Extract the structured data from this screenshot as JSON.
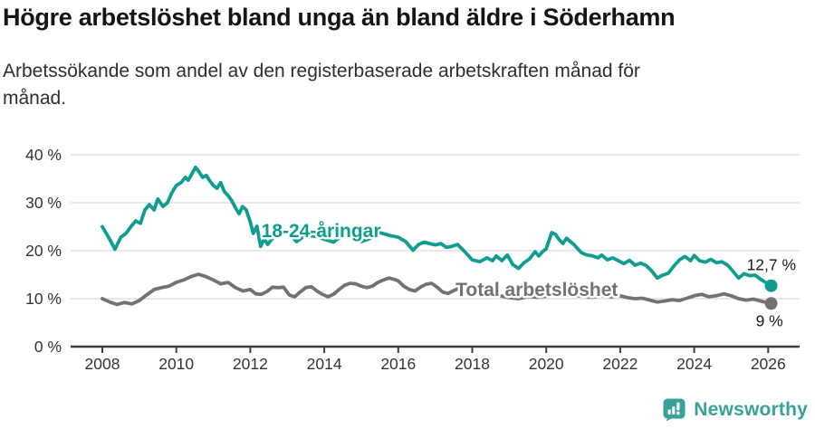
{
  "header": {
    "title": "Högre arbetslöshet bland unga än bland äldre i Söderhamn",
    "subtitle_line1": "Arbetssökande som andel av den registerbaserade arbetskraften månad för",
    "subtitle_line2": "månad."
  },
  "footer": {
    "brand": "Newsworthy",
    "logo_icon": "newsworthy-chart-bubble-icon",
    "brand_color": "#38a29a"
  },
  "chart_data": {
    "type": "line",
    "title": "Högre arbetslöshet bland unga än bland äldre i Söderhamn",
    "xlabel": "",
    "ylabel": "",
    "x_ticks": [
      2008,
      2010,
      2012,
      2014,
      2016,
      2018,
      2020,
      2022,
      2024,
      2026
    ],
    "y_ticks": [
      0,
      10,
      20,
      30,
      40
    ],
    "y_tick_suffix": " %",
    "xlim": [
      2007.1,
      2026.9
    ],
    "ylim": [
      0,
      40
    ],
    "grid": true,
    "legend_position": "inline-labels",
    "colors": {
      "grid": "#d9d9d9",
      "axis": "#3e3e3e",
      "tick_text": "#333333",
      "annotation_text": "#1a1a1a"
    },
    "series": [
      {
        "name": "Total arbetslöshet",
        "color": "#727275",
        "end_label": "9 %",
        "end_label_side": "below",
        "label_anchor": {
          "year": 2017.55,
          "value": 10.6
        },
        "points": [
          [
            2008.0,
            10.0
          ],
          [
            2008.2,
            9.3
          ],
          [
            2008.4,
            8.8
          ],
          [
            2008.6,
            9.2
          ],
          [
            2008.8,
            8.9
          ],
          [
            2009.0,
            9.6
          ],
          [
            2009.2,
            10.8
          ],
          [
            2009.4,
            11.9
          ],
          [
            2009.6,
            12.3
          ],
          [
            2009.8,
            12.6
          ],
          [
            2010.0,
            13.4
          ],
          [
            2010.2,
            13.9
          ],
          [
            2010.4,
            14.6
          ],
          [
            2010.6,
            15.1
          ],
          [
            2010.8,
            14.6
          ],
          [
            2011.0,
            13.9
          ],
          [
            2011.2,
            13.1
          ],
          [
            2011.4,
            13.4
          ],
          [
            2011.6,
            12.3
          ],
          [
            2011.8,
            11.6
          ],
          [
            2012.0,
            11.9
          ],
          [
            2012.15,
            11.0
          ],
          [
            2012.3,
            10.9
          ],
          [
            2012.45,
            11.5
          ],
          [
            2012.6,
            12.4
          ],
          [
            2012.75,
            12.3
          ],
          [
            2012.9,
            12.4
          ],
          [
            2013.05,
            10.8
          ],
          [
            2013.2,
            10.4
          ],
          [
            2013.35,
            11.4
          ],
          [
            2013.5,
            12.3
          ],
          [
            2013.65,
            12.5
          ],
          [
            2013.8,
            11.6
          ],
          [
            2013.95,
            10.9
          ],
          [
            2014.1,
            10.4
          ],
          [
            2014.25,
            10.9
          ],
          [
            2014.4,
            11.9
          ],
          [
            2014.55,
            12.8
          ],
          [
            2014.7,
            13.2
          ],
          [
            2014.85,
            13.1
          ],
          [
            2015.0,
            12.6
          ],
          [
            2015.15,
            12.3
          ],
          [
            2015.3,
            12.6
          ],
          [
            2015.45,
            13.4
          ],
          [
            2015.6,
            13.9
          ],
          [
            2015.75,
            14.3
          ],
          [
            2015.9,
            14.0
          ],
          [
            2016.0,
            13.7
          ],
          [
            2016.15,
            12.6
          ],
          [
            2016.3,
            11.9
          ],
          [
            2016.45,
            11.6
          ],
          [
            2016.6,
            12.4
          ],
          [
            2016.75,
            13.0
          ],
          [
            2016.9,
            13.2
          ],
          [
            2017.05,
            12.4
          ],
          [
            2017.2,
            11.4
          ],
          [
            2017.35,
            11.1
          ],
          [
            2017.5,
            11.7
          ],
          [
            2017.65,
            12.2
          ],
          [
            2017.8,
            11.9
          ],
          [
            2018.0,
            11.3
          ],
          [
            2018.25,
            10.7
          ],
          [
            2018.5,
            10.9
          ],
          [
            2018.75,
            10.6
          ],
          [
            2019.0,
            10.2
          ],
          [
            2019.25,
            10.0
          ],
          [
            2019.5,
            10.4
          ],
          [
            2019.75,
            10.3
          ],
          [
            2020.0,
            10.5
          ],
          [
            2020.25,
            11.2
          ],
          [
            2020.5,
            11.0
          ],
          [
            2020.75,
            10.7
          ],
          [
            2021.0,
            10.5
          ],
          [
            2021.25,
            10.3
          ],
          [
            2021.5,
            10.6
          ],
          [
            2021.75,
            10.4
          ],
          [
            2022.0,
            10.6
          ],
          [
            2022.2,
            10.2
          ],
          [
            2022.4,
            10.0
          ],
          [
            2022.6,
            10.1
          ],
          [
            2022.8,
            9.7
          ],
          [
            2023.0,
            9.3
          ],
          [
            2023.2,
            9.5
          ],
          [
            2023.4,
            9.8
          ],
          [
            2023.6,
            9.6
          ],
          [
            2023.8,
            10.1
          ],
          [
            2024.0,
            10.6
          ],
          [
            2024.2,
            10.9
          ],
          [
            2024.4,
            10.4
          ],
          [
            2024.6,
            10.6
          ],
          [
            2024.8,
            11.0
          ],
          [
            2025.0,
            10.6
          ],
          [
            2025.2,
            10.0
          ],
          [
            2025.4,
            9.7
          ],
          [
            2025.6,
            9.9
          ],
          [
            2025.8,
            9.5
          ],
          [
            2026.08,
            9.0
          ]
        ]
      },
      {
        "name": "18-24-åringar",
        "color": "#0f9d8f",
        "end_label": "12,7 %",
        "end_label_side": "above",
        "label_anchor": {
          "year": 2012.3,
          "value": 22.8
        },
        "points": [
          [
            2008.0,
            25.0
          ],
          [
            2008.17,
            22.8
          ],
          [
            2008.34,
            20.3
          ],
          [
            2008.5,
            22.8
          ],
          [
            2008.64,
            23.6
          ],
          [
            2008.78,
            25.1
          ],
          [
            2008.9,
            26.2
          ],
          [
            2009.03,
            25.7
          ],
          [
            2009.15,
            28.5
          ],
          [
            2009.27,
            29.6
          ],
          [
            2009.4,
            28.5
          ],
          [
            2009.5,
            30.8
          ],
          [
            2009.64,
            29.2
          ],
          [
            2009.76,
            30.0
          ],
          [
            2009.88,
            32.1
          ],
          [
            2010.0,
            33.6
          ],
          [
            2010.13,
            34.2
          ],
          [
            2010.25,
            35.3
          ],
          [
            2010.32,
            34.7
          ],
          [
            2010.42,
            36.0
          ],
          [
            2010.52,
            37.4
          ],
          [
            2010.62,
            36.4
          ],
          [
            2010.71,
            35.3
          ],
          [
            2010.81,
            35.7
          ],
          [
            2010.91,
            34.5
          ],
          [
            2011.0,
            33.6
          ],
          [
            2011.1,
            33.0
          ],
          [
            2011.2,
            34.2
          ],
          [
            2011.3,
            32.3
          ],
          [
            2011.4,
            31.5
          ],
          [
            2011.5,
            30.4
          ],
          [
            2011.6,
            28.9
          ],
          [
            2011.7,
            27.7
          ],
          [
            2011.79,
            29.2
          ],
          [
            2011.89,
            28.5
          ],
          [
            2011.99,
            26.2
          ],
          [
            2012.08,
            23.6
          ],
          [
            2012.18,
            25.1
          ],
          [
            2012.28,
            20.9
          ],
          [
            2012.38,
            22.5
          ],
          [
            2012.47,
            21.3
          ],
          [
            2012.6,
            22.6
          ],
          [
            2012.75,
            23.4
          ],
          [
            2013.0,
            23.8
          ],
          [
            2013.25,
            21.9
          ],
          [
            2013.5,
            23.3
          ],
          [
            2013.75,
            23.0
          ],
          [
            2014.0,
            22.4
          ],
          [
            2014.25,
            21.8
          ],
          [
            2014.5,
            23.2
          ],
          [
            2014.75,
            23.6
          ],
          [
            2015.0,
            21.9
          ],
          [
            2015.25,
            22.6
          ],
          [
            2015.5,
            23.8
          ],
          [
            2015.75,
            23.2
          ],
          [
            2016.0,
            22.8
          ],
          [
            2016.2,
            21.9
          ],
          [
            2016.4,
            20.1
          ],
          [
            2016.55,
            21.3
          ],
          [
            2016.7,
            21.8
          ],
          [
            2016.85,
            21.5
          ],
          [
            2017.0,
            21.2
          ],
          [
            2017.15,
            21.5
          ],
          [
            2017.3,
            20.7
          ],
          [
            2017.45,
            20.9
          ],
          [
            2017.6,
            21.3
          ],
          [
            2017.8,
            19.8
          ],
          [
            2018.0,
            18.1
          ],
          [
            2018.2,
            17.7
          ],
          [
            2018.4,
            18.5
          ],
          [
            2018.55,
            17.9
          ],
          [
            2018.65,
            18.9
          ],
          [
            2018.8,
            17.9
          ],
          [
            2018.95,
            19.1
          ],
          [
            2019.1,
            17.1
          ],
          [
            2019.25,
            16.3
          ],
          [
            2019.4,
            17.5
          ],
          [
            2019.55,
            18.3
          ],
          [
            2019.7,
            19.8
          ],
          [
            2019.8,
            18.9
          ],
          [
            2019.9,
            19.8
          ],
          [
            2020.0,
            20.4
          ],
          [
            2020.15,
            23.8
          ],
          [
            2020.25,
            23.4
          ],
          [
            2020.35,
            22.3
          ],
          [
            2020.45,
            21.5
          ],
          [
            2020.55,
            22.6
          ],
          [
            2020.65,
            21.9
          ],
          [
            2020.75,
            21.3
          ],
          [
            2020.85,
            20.4
          ],
          [
            2020.95,
            19.6
          ],
          [
            2021.1,
            19.1
          ],
          [
            2021.25,
            18.9
          ],
          [
            2021.4,
            18.5
          ],
          [
            2021.5,
            19.1
          ],
          [
            2021.65,
            18.1
          ],
          [
            2021.8,
            18.5
          ],
          [
            2021.95,
            17.9
          ],
          [
            2022.1,
            17.3
          ],
          [
            2022.25,
            18.0
          ],
          [
            2022.4,
            17.0
          ],
          [
            2022.55,
            17.4
          ],
          [
            2022.7,
            16.9
          ],
          [
            2022.85,
            15.8
          ],
          [
            2023.0,
            14.3
          ],
          [
            2023.15,
            14.9
          ],
          [
            2023.3,
            15.3
          ],
          [
            2023.45,
            16.8
          ],
          [
            2023.6,
            18.1
          ],
          [
            2023.75,
            18.8
          ],
          [
            2023.9,
            17.9
          ],
          [
            2024.0,
            19.0
          ],
          [
            2024.15,
            17.9
          ],
          [
            2024.3,
            17.6
          ],
          [
            2024.45,
            18.2
          ],
          [
            2024.6,
            17.5
          ],
          [
            2024.75,
            17.7
          ],
          [
            2024.9,
            17.0
          ],
          [
            2025.05,
            15.7
          ],
          [
            2025.2,
            14.3
          ],
          [
            2025.35,
            15.2
          ],
          [
            2025.5,
            14.8
          ],
          [
            2025.65,
            14.9
          ],
          [
            2025.8,
            14.0
          ],
          [
            2025.95,
            13.3
          ],
          [
            2026.08,
            12.7
          ]
        ]
      }
    ]
  }
}
